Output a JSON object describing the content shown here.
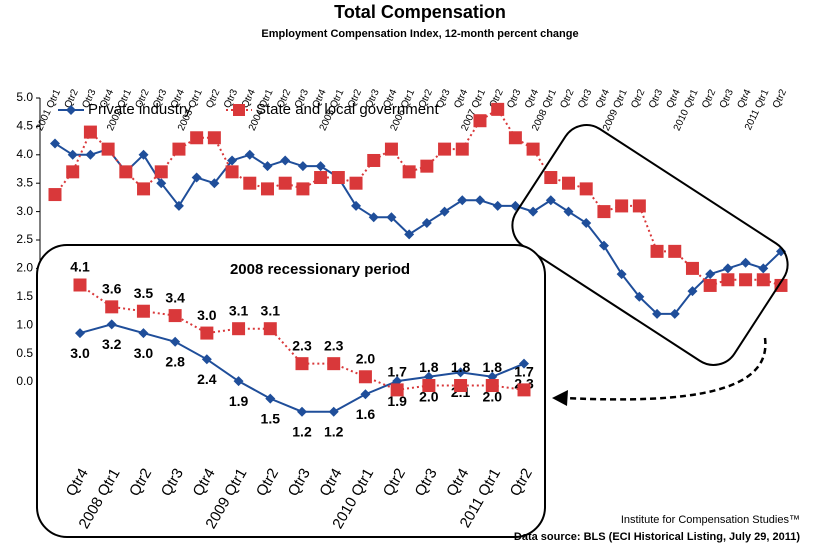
{
  "chart_data": [
    {
      "type": "line",
      "title": "Total Compensation",
      "subtitle": "Employment Compensation Index, 12-month percent change",
      "categories": [
        "2001 Qtr1",
        "Qtr2",
        "Qtr3",
        "Qtr4",
        "2002 Qtr1",
        "Qtr2",
        "Qtr3",
        "Qtr4",
        "2003 Qtr1",
        "Qtr2",
        "Qtr3",
        "Qtr4",
        "2004 Qtr1",
        "Qtr2",
        "Qtr3",
        "Qtr4",
        "2005 Qtr1",
        "Qtr2",
        "Qtr3",
        "Qtr4",
        "2006 Qtr1",
        "Qtr2",
        "Qtr3",
        "Qtr4",
        "2007 Qtr1",
        "Qtr2",
        "Qtr3",
        "Qtr4",
        "2008 Qtr1",
        "Qtr2",
        "Qtr3",
        "Qtr4",
        "2009 Qtr1",
        "Qtr2",
        "Qtr3",
        "Qtr4",
        "2010 Qtr1",
        "Qtr2",
        "Qtr3",
        "Qtr4",
        "2011 Qtr1",
        "Qtr2"
      ],
      "series": [
        {
          "name": "Private industry",
          "color": "#1f4e9a",
          "marker": "diamond",
          "dash": "solid",
          "values": [
            4.2,
            4.0,
            4.0,
            4.1,
            3.7,
            4.0,
            3.5,
            3.1,
            3.6,
            3.5,
            3.9,
            4.0,
            3.8,
            3.9,
            3.8,
            3.8,
            3.6,
            3.1,
            2.9,
            2.9,
            2.6,
            2.8,
            3.0,
            3.2,
            3.2,
            3.1,
            3.1,
            3.0,
            3.2,
            3.0,
            2.8,
            2.4,
            1.9,
            1.5,
            1.2,
            1.2,
            1.6,
            1.9,
            2.0,
            2.1,
            2.0,
            2.3
          ]
        },
        {
          "name": "State and local government",
          "color": "#d9383a",
          "marker": "square",
          "dash": "dotted",
          "values": [
            3.3,
            3.7,
            4.4,
            4.1,
            3.7,
            3.4,
            3.7,
            4.1,
            4.3,
            4.3,
            3.7,
            3.5,
            3.4,
            3.5,
            3.4,
            3.6,
            3.6,
            3.5,
            3.9,
            4.1,
            3.7,
            3.8,
            4.1,
            4.1,
            4.6,
            4.8,
            4.3,
            4.1,
            3.6,
            3.5,
            3.4,
            3.0,
            3.1,
            3.1,
            2.3,
            2.3,
            2.0,
            1.7,
            1.8,
            1.8,
            1.8,
            1.7
          ]
        }
      ],
      "ylim": [
        0,
        5
      ],
      "yticks": [
        {
          "value": 0,
          "label": "0.0"
        },
        {
          "value": 0.5,
          "label": "0.5"
        },
        {
          "value": 1,
          "label": "1.0"
        },
        {
          "value": 1.5,
          "label": "1.5"
        },
        {
          "value": 2,
          "label": "2.0"
        },
        {
          "value": 2.5,
          "label": "2.5"
        },
        {
          "value": 3,
          "label": "3.0"
        },
        {
          "value": 3.5,
          "label": "3.5"
        },
        {
          "value": 4,
          "label": "4.0"
        },
        {
          "value": 4.5,
          "label": "4.5"
        },
        {
          "value": 5,
          "label": "5.0"
        }
      ],
      "grid": false,
      "legend": "upper left",
      "notes": [
        "Institute for Compensation Studies™",
        "Data source: BLS (ECI Historical Listing, July 29, 2011)"
      ]
    },
    {
      "type": "line",
      "title": "2008 recessionary period",
      "categories": [
        "Qtr4",
        "2008 Qtr1",
        "Qtr2",
        "Qtr3",
        "Qtr4",
        "2009 Qtr1",
        "Qtr2",
        "Qtr3",
        "Qtr4",
        "2010 Qtr1",
        "Qtr2",
        "Qtr3",
        "Qtr4",
        "2011 Qtr1",
        "Qtr2"
      ],
      "series": [
        {
          "color": "#1f4e9a",
          "marker": "diamond",
          "dash": "solid",
          "label_position": "below",
          "values": [
            3.0,
            3.2,
            3.0,
            2.8,
            2.4,
            1.9,
            1.5,
            1.2,
            1.2,
            1.6,
            1.9,
            2.0,
            2.1,
            2.0,
            2.3
          ],
          "value_labels": [
            "3.0",
            "3.2",
            "3.0",
            "2.8",
            "2.4",
            "1.9",
            "1.5",
            "1.2",
            "1.2",
            "1.6",
            "1.9",
            "2.0",
            "2.1",
            "2.0",
            "2.3"
          ]
        },
        {
          "color": "#d9383a",
          "marker": "square",
          "dash": "dotted",
          "label_position": "above",
          "values": [
            4.1,
            3.6,
            3.5,
            3.4,
            3.0,
            3.1,
            3.1,
            2.3,
            2.3,
            2.0,
            1.7,
            1.8,
            1.8,
            1.8,
            1.7
          ],
          "value_labels": [
            "4.1",
            "3.6",
            "3.5",
            "3.4",
            "3.0",
            "3.1",
            "3.1",
            "2.3",
            "2.3",
            "2.0",
            "1.7",
            "1.8",
            "1.8",
            "1.8",
            "1.7"
          ]
        }
      ]
    }
  ]
}
